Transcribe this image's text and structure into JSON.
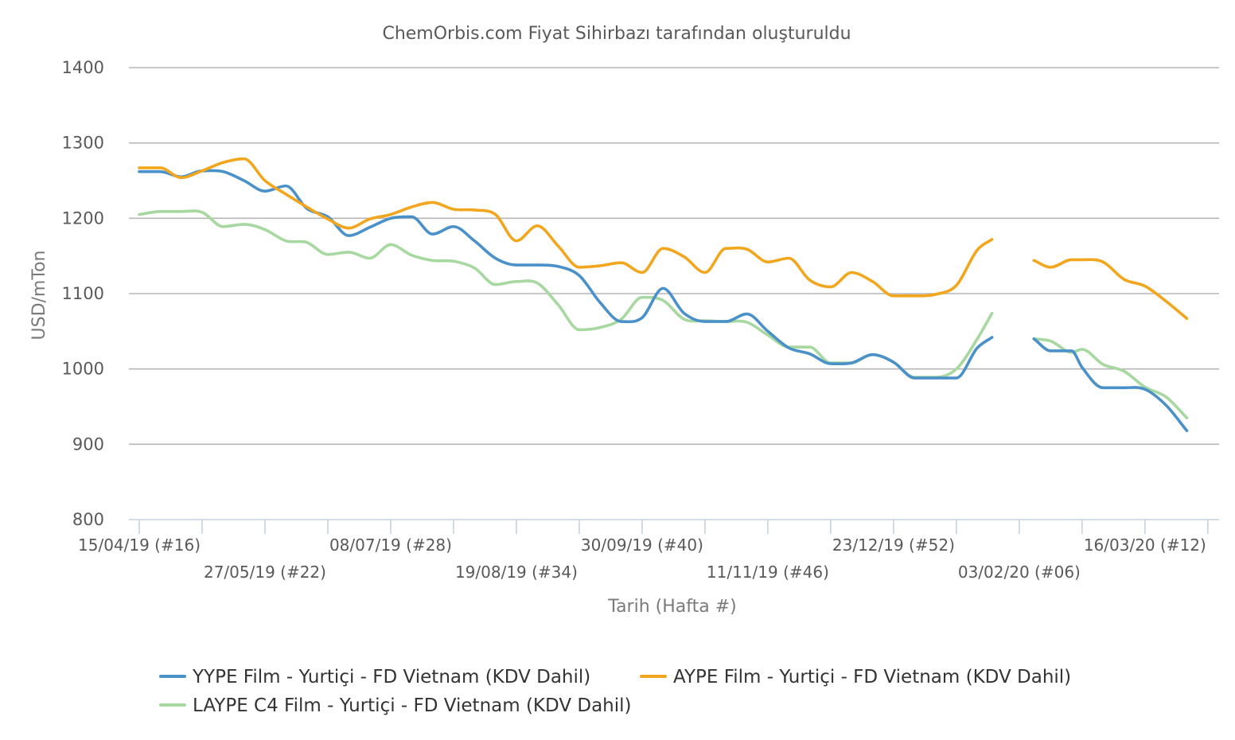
{
  "chart_data": {
    "type": "line",
    "title": "",
    "subtitle": "ChemOrbis.com Fiyat Sihirbazı tarafından oluşturuldu",
    "xlabel": "Tarih (Hafta #)",
    "ylabel": "USD/mTon",
    "ylim": [
      800,
      1400
    ],
    "yticks": [
      800,
      900,
      1000,
      1100,
      1200,
      1300,
      1400
    ],
    "grid": true,
    "legend_position": "bottom",
    "x_tick_labels": [
      "15/04/19 (#16)",
      "27/05/19 (#22)",
      "08/07/19 (#28)",
      "19/08/19 (#34)",
      "30/09/19 (#40)",
      "11/11/19 (#46)",
      "23/12/19 (#52)",
      "03/02/20 (#06)",
      "16/03/20 (#12)"
    ],
    "x_tick_weeks": [
      0,
      6,
      12,
      18,
      24,
      30,
      36,
      42,
      48
    ],
    "x_week_range": [
      0,
      51
    ],
    "x_unit": "weeks",
    "series": [
      {
        "name": "YYPE Film - Yurtiçi  - FD Vietnam (KDV Dahil)",
        "color": "#4a90c9",
        "points": [
          [
            0,
            1262
          ],
          [
            1,
            1262
          ],
          [
            2,
            1255
          ],
          [
            3,
            1263
          ],
          [
            4,
            1262
          ],
          [
            5,
            1250
          ],
          [
            6,
            1236
          ],
          [
            7,
            1243
          ],
          [
            8,
            1213
          ],
          [
            9,
            1202
          ],
          [
            10,
            1177
          ],
          [
            11,
            1188
          ],
          [
            12,
            1200
          ],
          [
            13,
            1202
          ],
          [
            14,
            1179
          ],
          [
            15,
            1189
          ],
          [
            16,
            1170
          ],
          [
            17,
            1147
          ],
          [
            18,
            1138
          ],
          [
            19,
            1138
          ],
          [
            20,
            1136
          ],
          [
            21,
            1124
          ],
          [
            22,
            1088
          ],
          [
            23,
            1063
          ],
          [
            24,
            1068
          ],
          [
            25,
            1107
          ],
          [
            26,
            1074
          ],
          [
            27,
            1063
          ],
          [
            28,
            1063
          ],
          [
            29,
            1073
          ],
          [
            30,
            1050
          ],
          [
            31,
            1028
          ],
          [
            32,
            1020
          ],
          [
            33,
            1007
          ],
          [
            34,
            1008
          ],
          [
            35,
            1019
          ],
          [
            36,
            1009
          ],
          [
            37,
            988
          ],
          [
            38,
            988
          ],
          [
            39,
            988
          ],
          [
            40,
            1028
          ],
          [
            40.7,
            1042
          ],
          null,
          [
            42.7,
            1040
          ],
          [
            43.5,
            1024
          ],
          [
            44.5,
            1024
          ],
          [
            45,
            1002
          ],
          [
            46,
            975
          ],
          [
            47,
            975
          ],
          [
            48,
            973
          ],
          [
            49,
            952
          ],
          [
            50,
            918
          ]
        ]
      },
      {
        "name": "AYPE Film - Yurtiçi  - FD Vietnam (KDV Dahil)",
        "color": "#f2a61d",
        "points": [
          [
            0,
            1267
          ],
          [
            1,
            1267
          ],
          [
            2,
            1254
          ],
          [
            3,
            1263
          ],
          [
            4,
            1274
          ],
          [
            5,
            1279
          ],
          [
            6,
            1250
          ],
          [
            7,
            1232
          ],
          [
            8,
            1215
          ],
          [
            9,
            1199
          ],
          [
            10,
            1187
          ],
          [
            11,
            1199
          ],
          [
            12,
            1205
          ],
          [
            13,
            1215
          ],
          [
            14,
            1221
          ],
          [
            15,
            1212
          ],
          [
            16,
            1211
          ],
          [
            17,
            1205
          ],
          [
            18,
            1170
          ],
          [
            19,
            1190
          ],
          [
            20,
            1163
          ],
          [
            21,
            1135
          ],
          [
            22,
            1137
          ],
          [
            23,
            1141
          ],
          [
            24,
            1128
          ],
          [
            25,
            1160
          ],
          [
            26,
            1149
          ],
          [
            27,
            1128
          ],
          [
            28,
            1160
          ],
          [
            29,
            1159
          ],
          [
            30,
            1142
          ],
          [
            31,
            1147
          ],
          [
            32,
            1118
          ],
          [
            33,
            1109
          ],
          [
            34,
            1128
          ],
          [
            35,
            1116
          ],
          [
            36,
            1097
          ],
          [
            37,
            1097
          ],
          [
            38,
            1099
          ],
          [
            39,
            1111
          ],
          [
            40,
            1158
          ],
          [
            40.7,
            1172
          ],
          null,
          [
            42.7,
            1144
          ],
          [
            43.5,
            1135
          ],
          [
            44.5,
            1145
          ],
          [
            45,
            1145
          ],
          [
            46,
            1142
          ],
          [
            47,
            1119
          ],
          [
            48,
            1110
          ],
          [
            49,
            1090
          ],
          [
            50,
            1067
          ]
        ]
      },
      {
        "name": "LAYPE C4 Film - Yurtiçi  - FD Vietnam (KDV Dahil)",
        "color": "#a6d8a0",
        "points": [
          [
            0,
            1205
          ],
          [
            1,
            1209
          ],
          [
            2,
            1209
          ],
          [
            3,
            1208
          ],
          [
            4,
            1189
          ],
          [
            5,
            1192
          ],
          [
            6,
            1185
          ],
          [
            7,
            1170
          ],
          [
            8,
            1168
          ],
          [
            9,
            1152
          ],
          [
            10,
            1155
          ],
          [
            11,
            1147
          ],
          [
            12,
            1165
          ],
          [
            13,
            1151
          ],
          [
            14,
            1144
          ],
          [
            15,
            1143
          ],
          [
            16,
            1134
          ],
          [
            17,
            1112
          ],
          [
            18,
            1116
          ],
          [
            19,
            1114
          ],
          [
            20,
            1085
          ],
          [
            21,
            1052
          ],
          [
            22,
            1055
          ],
          [
            23,
            1066
          ],
          [
            24,
            1095
          ],
          [
            25,
            1091
          ],
          [
            26,
            1066
          ],
          [
            27,
            1064
          ],
          [
            28,
            1063
          ],
          [
            29,
            1062
          ],
          [
            30,
            1045
          ],
          [
            31,
            1029
          ],
          [
            32,
            1029
          ],
          [
            33,
            1008
          ],
          [
            34,
            1008
          ],
          [
            35,
            1019
          ],
          [
            36,
            1009
          ],
          [
            37,
            989
          ],
          [
            38,
            989
          ],
          [
            39,
            1000
          ],
          [
            40,
            1040
          ],
          [
            40.7,
            1074
          ],
          null,
          [
            42.7,
            1040
          ],
          [
            43.5,
            1037
          ],
          [
            44.5,
            1022
          ],
          [
            45,
            1026
          ],
          [
            46,
            1006
          ],
          [
            47,
            997
          ],
          [
            48,
            976
          ],
          [
            49,
            963
          ],
          [
            50,
            935
          ]
        ]
      }
    ]
  }
}
